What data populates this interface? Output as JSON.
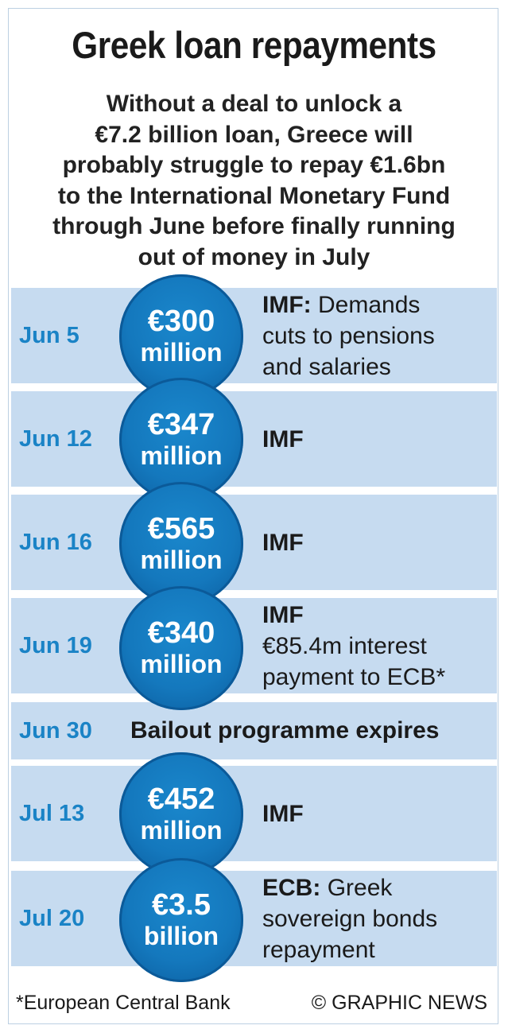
{
  "title": "Greek loan repayments",
  "subtitle_lines": [
    "Without a deal to unlock a",
    "€7.2 billion loan, Greece will",
    "probably struggle to repay €1.6bn",
    "to the International Monetary Fund",
    "through June before finally running",
    "out of money in July"
  ],
  "colors": {
    "row_bg": "#c6dbf0",
    "date": "#1a83c6",
    "coin": "#1478bd",
    "coin_text": "#ffffff"
  },
  "payments": [
    {
      "date": "Jun 5",
      "amount": "€300",
      "unit": "million",
      "label": "IMF:",
      "desc_lines": [
        "Demands",
        "cuts to pensions",
        "and salaries"
      ]
    },
    {
      "date": "Jun 12",
      "amount": "€347",
      "unit": "million",
      "label": "IMF",
      "desc_lines": []
    },
    {
      "date": "Jun 16",
      "amount": "€565",
      "unit": "million",
      "label": "IMF",
      "desc_lines": []
    },
    {
      "date": "Jun 19",
      "amount": "€340",
      "unit": "million",
      "label": "IMF",
      "desc_lines": [
        "€85.4m interest",
        "payment to ECB*"
      ]
    },
    {
      "date": "Jun 30",
      "text": "Bailout programme expires"
    },
    {
      "date": "Jul 13",
      "amount": "€452",
      "unit": "million",
      "label": "IMF",
      "desc_lines": []
    },
    {
      "date": "Jul 20",
      "amount": "€3.5",
      "unit": "billion",
      "label": "ECB:",
      "desc_lines": [
        "Greek",
        "sovereign bonds",
        "repayment"
      ]
    }
  ],
  "footnote": "*European Central Bank",
  "credit": "© GRAPHIC NEWS"
}
